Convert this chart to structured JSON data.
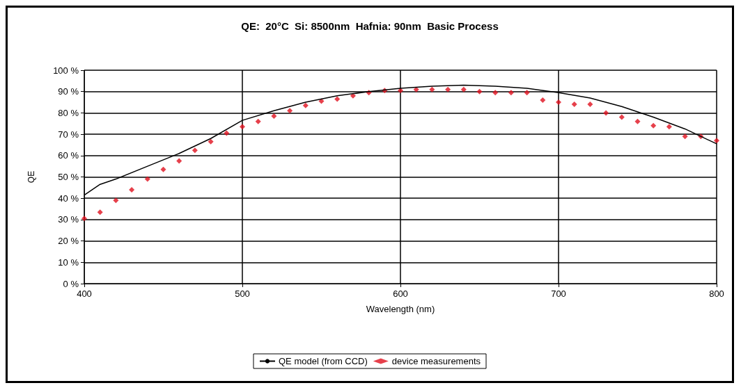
{
  "chart_data": {
    "type": "scatter",
    "title": "QE:  20°C  Si: 8500nm  Hafnia: 90nm  Basic Process",
    "xlabel": "Wavelength (nm)",
    "ylabel": "QE",
    "xlim": [
      400,
      800
    ],
    "xticks": [
      400,
      500,
      600,
      700,
      800
    ],
    "ylim": [
      0,
      100
    ],
    "yticks": [
      {
        "value": 0,
        "label": "0 %"
      },
      {
        "value": 10,
        "label": "10 %"
      },
      {
        "value": 20,
        "label": "20 %"
      },
      {
        "value": 30,
        "label": "30 %"
      },
      {
        "value": 40,
        "label": "40 %"
      },
      {
        "value": 50,
        "label": "50 %"
      },
      {
        "value": 60,
        "label": "60 %"
      },
      {
        "value": 70,
        "label": "70 %"
      },
      {
        "value": 80,
        "label": "80 %"
      },
      {
        "value": 90,
        "label": "90 %"
      },
      {
        "value": 100,
        "label": "100 %"
      }
    ],
    "grid": true,
    "legend": "bottom",
    "series": [
      {
        "name": "QE model (from CCD)",
        "type": "line",
        "color": "#000000",
        "marker": "none",
        "line_style": "solid",
        "x": [
          400,
          410,
          420,
          440,
          460,
          480,
          500,
          520,
          540,
          560,
          580,
          600,
          620,
          640,
          660,
          680,
          700,
          720,
          740,
          760,
          780,
          800
        ],
        "values": [
          41.5,
          46.5,
          49,
          55,
          61,
          68,
          76.5,
          81,
          85,
          88,
          90,
          91.5,
          92.5,
          93,
          92.5,
          91.5,
          89.5,
          87,
          83,
          78,
          72.5,
          65.5
        ]
      },
      {
        "name": "device measurements",
        "color": "#e0101e",
        "marker": "diamond",
        "x": [
          400,
          410,
          420,
          430,
          440,
          450,
          460,
          470,
          480,
          490,
          500,
          510,
          520,
          530,
          540,
          550,
          560,
          570,
          580,
          590,
          600,
          610,
          620,
          630,
          640,
          650,
          660,
          670,
          680,
          690,
          700,
          710,
          720,
          730,
          740,
          750,
          760,
          770,
          780,
          790,
          800
        ],
        "values": [
          30.5,
          33.5,
          39,
          44,
          49,
          53.5,
          57.5,
          62.5,
          66.5,
          70.5,
          73.5,
          76,
          78.5,
          81,
          83.5,
          85.5,
          86.5,
          88,
          89.5,
          90.5,
          90.5,
          91,
          91,
          91,
          91,
          90,
          89.5,
          89.5,
          89.5,
          86,
          85,
          84,
          84,
          80,
          78,
          76,
          74,
          73.5,
          69,
          69,
          67
        ]
      }
    ]
  }
}
